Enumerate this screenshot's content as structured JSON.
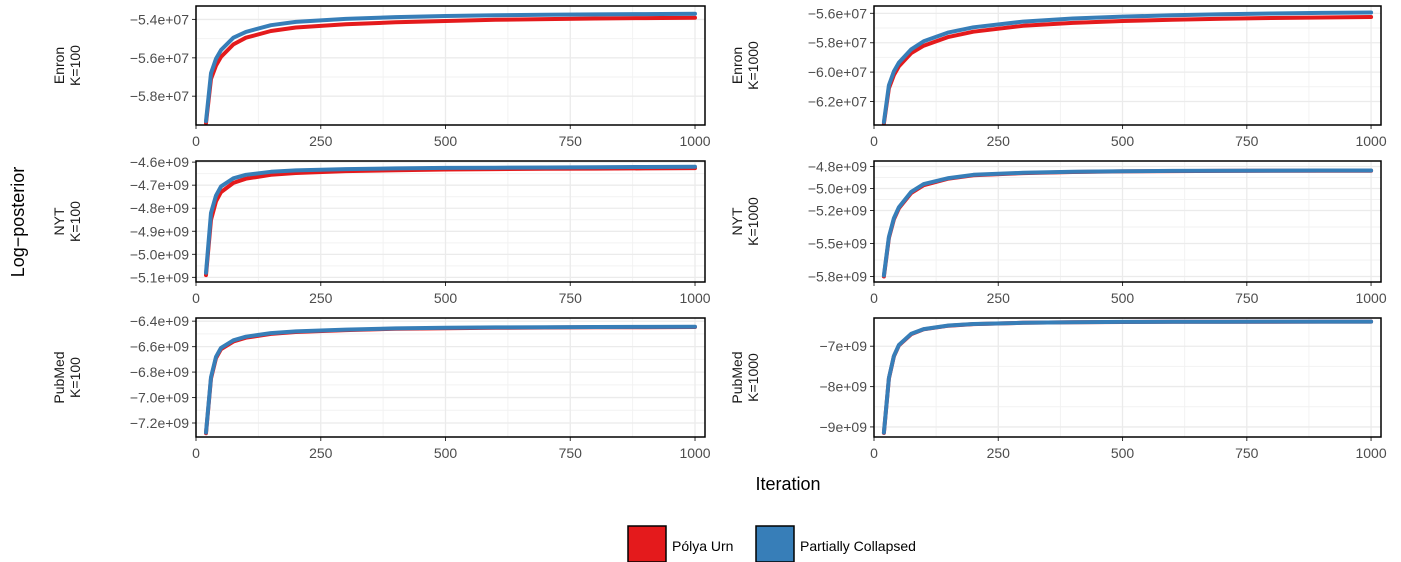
{
  "figure": {
    "ylabel": "Log−posterior",
    "xlabel": "Iteration"
  },
  "legend": {
    "position": "bottom",
    "items": [
      {
        "label": "Pólya Urn",
        "color": "#E41A1C"
      },
      {
        "label": "Partially Collapsed",
        "color": "#377EB8"
      }
    ]
  },
  "chart_data": [
    {
      "type": "line",
      "strip_label": [
        "Enron",
        "K=100"
      ],
      "grid": true,
      "xlim": [
        0,
        1020
      ],
      "ylim": [
        -59500000,
        -53300000
      ],
      "x_ticks": [
        0,
        250,
        500,
        750,
        1000
      ],
      "x_tick_labels": [
        "0",
        "250",
        "500",
        "750",
        "1000"
      ],
      "y_ticks": [
        -58000000,
        -56000000,
        -54000000
      ],
      "y_tick_labels": [
        "−5.8e+07",
        "−5.6e+07",
        "−5.4e+07"
      ],
      "series": [
        {
          "name": "Pólya Urn",
          "x": [
            20,
            30,
            40,
            50,
            75,
            100,
            150,
            200,
            300,
            400,
            500,
            600,
            700,
            800,
            900,
            1000
          ],
          "y": [
            -59400000,
            -57100000,
            -56400000,
            -55950000,
            -55300000,
            -54950000,
            -54600000,
            -54420000,
            -54250000,
            -54150000,
            -54080000,
            -54020000,
            -53980000,
            -53950000,
            -53930000,
            -53910000
          ]
        },
        {
          "name": "Partially Collapsed",
          "x": [
            20,
            30,
            40,
            50,
            75,
            100,
            150,
            200,
            300,
            400,
            500,
            600,
            700,
            800,
            900,
            1000
          ],
          "y": [
            -59300000,
            -56800000,
            -56050000,
            -55600000,
            -54950000,
            -54650000,
            -54300000,
            -54130000,
            -53970000,
            -53880000,
            -53820000,
            -53780000,
            -53760000,
            -53740000,
            -53720000,
            -53700000
          ]
        }
      ]
    },
    {
      "type": "line",
      "strip_label": [
        "Enron",
        "K=1000"
      ],
      "grid": true,
      "xlim": [
        0,
        1020
      ],
      "ylim": [
        -63600000,
        -55500000
      ],
      "x_ticks": [
        0,
        250,
        500,
        750,
        1000
      ],
      "x_tick_labels": [
        "0",
        "250",
        "500",
        "750",
        "1000"
      ],
      "y_ticks": [
        -62000000,
        -60000000,
        -58000000,
        -56000000
      ],
      "y_tick_labels": [
        "−6.2e+07",
        "−6.0e+07",
        "−5.8e+07",
        "−5.6e+07"
      ],
      "series": [
        {
          "name": "Pólya Urn",
          "x": [
            20,
            30,
            40,
            50,
            75,
            100,
            150,
            200,
            300,
            400,
            500,
            600,
            700,
            800,
            900,
            1000
          ],
          "y": [
            -63500000,
            -61100000,
            -60200000,
            -59600000,
            -58700000,
            -58200000,
            -57600000,
            -57250000,
            -56850000,
            -56650000,
            -56520000,
            -56430000,
            -56370000,
            -56320000,
            -56280000,
            -56250000
          ]
        },
        {
          "name": "Partially Collapsed",
          "x": [
            20,
            30,
            40,
            50,
            75,
            100,
            150,
            200,
            300,
            400,
            500,
            600,
            700,
            800,
            900,
            1000
          ],
          "y": [
            -63400000,
            -60900000,
            -59950000,
            -59350000,
            -58450000,
            -57900000,
            -57300000,
            -56950000,
            -56560000,
            -56350000,
            -56220000,
            -56130000,
            -56060000,
            -56010000,
            -55970000,
            -55940000
          ]
        }
      ]
    },
    {
      "type": "line",
      "strip_label": [
        "NYT",
        "K=100"
      ],
      "grid": true,
      "xlim": [
        0,
        1020
      ],
      "ylim": [
        -5120000000,
        -4595000000
      ],
      "x_ticks": [
        0,
        250,
        500,
        750,
        1000
      ],
      "x_tick_labels": [
        "0",
        "250",
        "500",
        "750",
        "1000"
      ],
      "y_ticks": [
        -5100000000,
        -5000000000,
        -4900000000,
        -4800000000,
        -4700000000,
        -4600000000
      ],
      "y_tick_labels": [
        "−5.1e+09",
        "−5.0e+09",
        "−4.9e+09",
        "−4.8e+09",
        "−4.7e+09",
        "−4.6e+09"
      ],
      "series": [
        {
          "name": "Pólya Urn",
          "x": [
            20,
            30,
            40,
            50,
            75,
            100,
            150,
            200,
            300,
            400,
            500,
            600,
            700,
            800,
            900,
            1000
          ],
          "y": [
            -5090000000,
            -4850000000,
            -4770000000,
            -4730000000,
            -4690000000,
            -4672000000,
            -4655000000,
            -4647000000,
            -4639000000,
            -4635000000,
            -4632000000,
            -4630000000,
            -4629000000,
            -4628000000,
            -4627000000,
            -4626000000
          ]
        },
        {
          "name": "Partially Collapsed",
          "x": [
            20,
            30,
            40,
            50,
            75,
            100,
            150,
            200,
            300,
            400,
            500,
            600,
            700,
            800,
            900,
            1000
          ],
          "y": [
            -5080000000,
            -4820000000,
            -4745000000,
            -4705000000,
            -4670000000,
            -4655000000,
            -4642000000,
            -4636000000,
            -4630000000,
            -4627000000,
            -4625000000,
            -4624000000,
            -4623000000,
            -4622000000,
            -4621000000,
            -4620000000
          ]
        }
      ]
    },
    {
      "type": "line",
      "strip_label": [
        "NYT",
        "K=1000"
      ],
      "grid": true,
      "xlim": [
        0,
        1020
      ],
      "ylim": [
        -5850000000,
        -4750000000
      ],
      "x_ticks": [
        0,
        250,
        500,
        750,
        1000
      ],
      "x_tick_labels": [
        "0",
        "250",
        "500",
        "750",
        "1000"
      ],
      "y_ticks": [
        -5800000000,
        -5500000000,
        -5200000000,
        -5000000000,
        -4800000000
      ],
      "y_tick_labels": [
        "−5.8e+09",
        "−5.5e+09",
        "−5.2e+09",
        "−5.0e+09",
        "−4.8e+09"
      ],
      "series": [
        {
          "name": "Pólya Urn",
          "x": [
            20,
            30,
            40,
            50,
            75,
            100,
            150,
            200,
            300,
            400,
            500,
            600,
            700,
            800,
            900,
            1000
          ],
          "y": [
            -5800000000,
            -5450000000,
            -5280000000,
            -5180000000,
            -5040000000,
            -4970000000,
            -4910000000,
            -4880000000,
            -4860000000,
            -4850000000,
            -4845000000,
            -4842000000,
            -4840000000,
            -4839000000,
            -4838000000,
            -4838000000
          ]
        },
        {
          "name": "Partially Collapsed",
          "x": [
            20,
            30,
            40,
            50,
            75,
            100,
            150,
            200,
            300,
            400,
            500,
            600,
            700,
            800,
            900,
            1000
          ],
          "y": [
            -5790000000,
            -5440000000,
            -5270000000,
            -5170000000,
            -5030000000,
            -4960000000,
            -4905000000,
            -4875000000,
            -4857000000,
            -4848000000,
            -4843000000,
            -4840000000,
            -4838000000,
            -4837000000,
            -4836000000,
            -4836000000
          ]
        }
      ]
    },
    {
      "type": "line",
      "strip_label": [
        "PubMed",
        "K=100"
      ],
      "grid": true,
      "xlim": [
        0,
        1020
      ],
      "ylim": [
        -7310000000,
        -6375000000
      ],
      "x_ticks": [
        0,
        250,
        500,
        750,
        1000
      ],
      "x_tick_labels": [
        "0",
        "250",
        "500",
        "750",
        "1000"
      ],
      "y_ticks": [
        -7200000000,
        -7000000000,
        -6800000000,
        -6600000000,
        -6400000000
      ],
      "y_tick_labels": [
        "−7.2e+09",
        "−7.0e+09",
        "−6.8e+09",
        "−6.6e+09",
        "−6.4e+09"
      ],
      "series": [
        {
          "name": "Pólya Urn",
          "x": [
            20,
            30,
            40,
            50,
            75,
            100,
            150,
            200,
            300,
            400,
            500,
            600,
            700,
            800,
            900,
            1000
          ],
          "y": [
            -7280000000,
            -6850000000,
            -6690000000,
            -6620000000,
            -6560000000,
            -6530000000,
            -6500000000,
            -6485000000,
            -6470000000,
            -6460000000,
            -6455000000,
            -6452000000,
            -6450000000,
            -6448000000,
            -6447000000,
            -6446000000
          ]
        },
        {
          "name": "Partially Collapsed",
          "x": [
            20,
            30,
            40,
            50,
            75,
            100,
            150,
            200,
            300,
            400,
            500,
            600,
            700,
            800,
            900,
            1000
          ],
          "y": [
            -7275000000,
            -6840000000,
            -6680000000,
            -6610000000,
            -6550000000,
            -6522000000,
            -6494000000,
            -6480000000,
            -6466000000,
            -6457000000,
            -6452000000,
            -6449000000,
            -6447000000,
            -6446000000,
            -6445000000,
            -6444000000
          ]
        }
      ]
    },
    {
      "type": "line",
      "strip_label": [
        "PubMed",
        "K=1000"
      ],
      "grid": true,
      "xlim": [
        0,
        1020
      ],
      "ylim": [
        -9250000000,
        -6300000000
      ],
      "x_ticks": [
        0,
        250,
        500,
        750,
        1000
      ],
      "x_tick_labels": [
        "0",
        "250",
        "500",
        "750",
        "1000"
      ],
      "y_ticks": [
        -9000000000,
        -8000000000,
        -7000000000
      ],
      "y_tick_labels": [
        "−9e+09",
        "−8e+09",
        "−7e+09"
      ],
      "series": [
        {
          "name": "Pólya Urn",
          "x": [
            20,
            30,
            40,
            50,
            75,
            100,
            150,
            200,
            300,
            400,
            500,
            600,
            700,
            800,
            900,
            1000
          ],
          "y": [
            -9150000000,
            -7800000000,
            -7250000000,
            -6980000000,
            -6700000000,
            -6580000000,
            -6490000000,
            -6450000000,
            -6420000000,
            -6405000000,
            -6398000000,
            -6394000000,
            -6392000000,
            -6391000000,
            -6390000000,
            -6390000000
          ]
        },
        {
          "name": "Partially Collapsed",
          "x": [
            20,
            30,
            40,
            50,
            75,
            100,
            150,
            200,
            300,
            400,
            500,
            600,
            700,
            800,
            900,
            1000
          ],
          "y": [
            -9140000000,
            -7790000000,
            -7240000000,
            -6970000000,
            -6690000000,
            -6575000000,
            -6487000000,
            -6448000000,
            -6418000000,
            -6404000000,
            -6397000000,
            -6393000000,
            -6391000000,
            -6390000000,
            -6389000000,
            -6389000000
          ]
        }
      ]
    }
  ]
}
